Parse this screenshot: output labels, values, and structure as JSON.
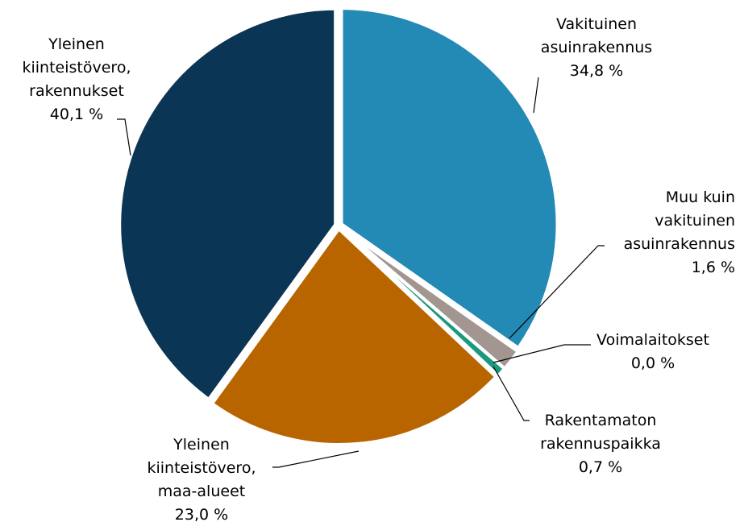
{
  "chart_data": {
    "type": "pie",
    "categories": [
      [
        "Vakituinen",
        "asuinrakennus"
      ],
      [
        "Muu kuin",
        "vakituinen",
        "asuinrakennus"
      ],
      [
        "Voimalaitokset"
      ],
      [
        "Rakentamaton",
        "rakennuspaikka"
      ],
      [
        "Yleinen",
        "kiinteistövero,",
        "maa-alueet"
      ],
      [
        "Yleinen",
        "kiinteistövero,",
        "rakennukset"
      ]
    ],
    "values": [
      34.8,
      1.6,
      0.0,
      0.7,
      23.0,
      40.1
    ],
    "value_labels": [
      "34,8 %",
      "1,6 %",
      "0,0 %",
      "0,7 %",
      "23,0 %",
      "40,1 %"
    ],
    "colors": [
      "#2389b5",
      "#a39690",
      "#5c7f8c",
      "#1a9a7c",
      "#b86500",
      "#0b3555"
    ]
  }
}
